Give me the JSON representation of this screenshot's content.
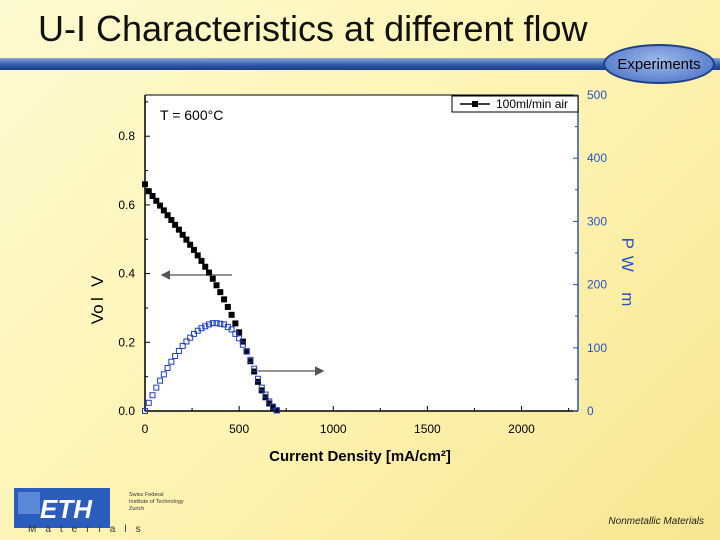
{
  "slide": {
    "title": "U-I Characteristics at different flow",
    "badge": "Experiments",
    "footer_right": "Nonmetallic Materials",
    "eth_lines": [
      "Swiss Federal",
      "Institute of Technology",
      "Zurich"
    ],
    "materials_label": "Materials"
  },
  "colors": {
    "title_bar": "#2f56a8",
    "badge": "#5d83cf",
    "right_axis": "#2a52c8"
  },
  "chart_data": {
    "type": "scatter",
    "annotation": "T = 600°C",
    "xlabel": "Current Density [mA/cm²]",
    "ylabel_left": "Vo l   V",
    "ylabel_right": "P  W      m",
    "xlim": [
      0,
      2300
    ],
    "ylim_left": [
      0.0,
      0.92
    ],
    "ylim_right": [
      0,
      500
    ],
    "x_ticks": [
      0,
      500,
      1000,
      1500,
      2000
    ],
    "y_left_ticks": [
      0.0,
      0.2,
      0.4,
      0.6,
      0.8
    ],
    "y_left_tick_labels": [
      "0.0",
      "0.2",
      "0.4",
      "0.6",
      "0.8"
    ],
    "y_right_ticks": [
      0,
      100,
      200,
      300,
      400,
      500
    ],
    "legend": {
      "position": "top-right",
      "entries": [
        "100ml/min air"
      ]
    },
    "series": [
      {
        "name": "100ml/min air",
        "axis": "left",
        "marker": "filled-square",
        "color": "#000000",
        "x": [
          0,
          20,
          40,
          60,
          80,
          100,
          120,
          140,
          160,
          180,
          200,
          220,
          240,
          260,
          280,
          300,
          320,
          340,
          360,
          380,
          400,
          420,
          440,
          460,
          480,
          500,
          520,
          540,
          560,
          580,
          600,
          620,
          640,
          660,
          680,
          700
        ],
        "values": [
          0.66,
          0.64,
          0.626,
          0.612,
          0.598,
          0.584,
          0.57,
          0.556,
          0.542,
          0.528,
          0.513,
          0.499,
          0.484,
          0.469,
          0.453,
          0.437,
          0.42,
          0.403,
          0.385,
          0.366,
          0.346,
          0.325,
          0.303,
          0.28,
          0.255,
          0.229,
          0.202,
          0.174,
          0.145,
          0.115,
          0.085,
          0.06,
          0.04,
          0.022,
          0.01,
          0.002
        ]
      },
      {
        "name": "",
        "axis": "right",
        "marker": "open-square",
        "color": "#1f3fbf",
        "x": [
          0,
          20,
          40,
          60,
          80,
          100,
          120,
          140,
          160,
          180,
          200,
          220,
          240,
          260,
          280,
          300,
          320,
          340,
          360,
          380,
          400,
          420,
          440,
          460,
          480,
          500,
          520,
          540,
          560,
          580,
          600,
          620,
          640,
          660,
          680,
          700
        ],
        "values": [
          0,
          13,
          25,
          37,
          48,
          58,
          68,
          78,
          87,
          95,
          103,
          110,
          116,
          122,
          127,
          131,
          134,
          137,
          139,
          139,
          138,
          137,
          133,
          129,
          122,
          115,
          105,
          94,
          81,
          67,
          51,
          37,
          26,
          15,
          7,
          1
        ]
      }
    ]
  }
}
